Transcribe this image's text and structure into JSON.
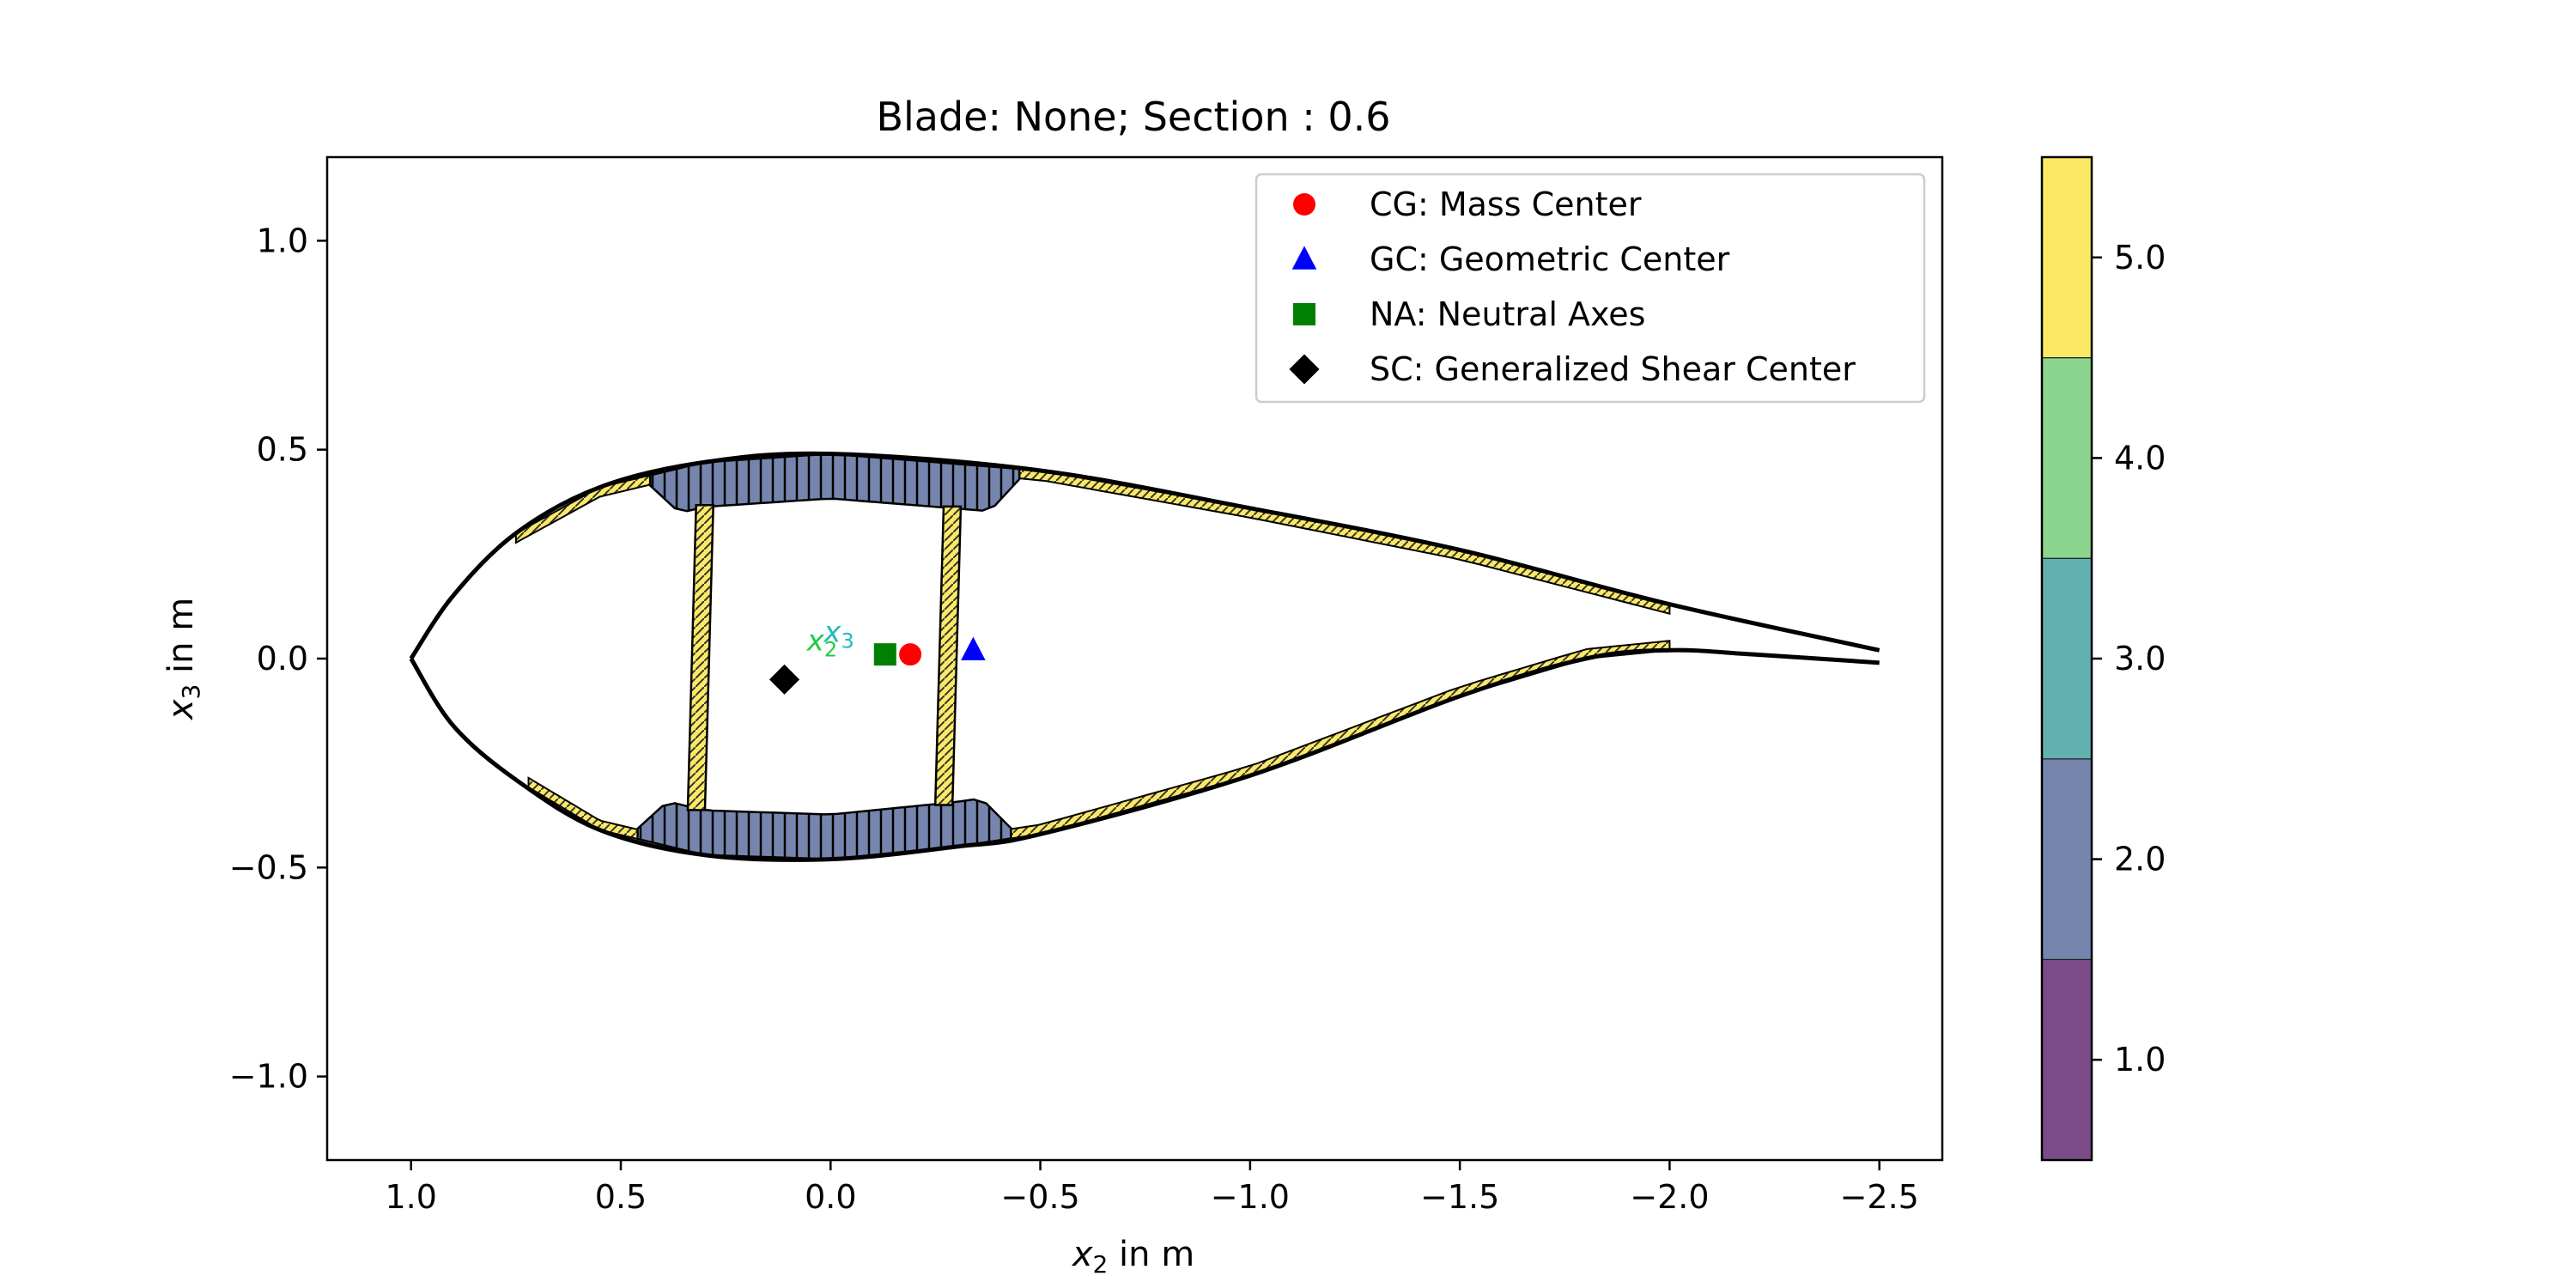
{
  "chart_data": {
    "type": "scatter",
    "title": "Blade: None; Section : 0.6",
    "xlabel_var": "x",
    "xlabel_sub": "2",
    "xlabel_unit": " in m",
    "ylabel_var": "x",
    "ylabel_sub": "3",
    "ylabel_unit": " in m",
    "xlim": [
      1.2,
      -2.65
    ],
    "ylim": [
      -1.2,
      1.2
    ],
    "x_inverted": true,
    "xticks": [
      1.0,
      0.5,
      0.0,
      -0.5,
      -1.0,
      -1.5,
      -2.0,
      -2.5
    ],
    "xtick_labels": [
      "1.0",
      "0.5",
      "0.0",
      "−0.5",
      "−1.0",
      "−1.5",
      "−2.0",
      "−2.5"
    ],
    "yticks": [
      1.0,
      0.5,
      0.0,
      -0.5,
      -1.0
    ],
    "ytick_labels": [
      "1.0",
      "0.5",
      "0.0",
      "−0.5",
      "−1.0"
    ],
    "legend_position": "top-right",
    "series": [
      {
        "name": "CG: Mass Center",
        "marker": "circle",
        "color": "#ff0000",
        "x": -0.19,
        "y": 0.01
      },
      {
        "name": "GC: Geometric Center",
        "marker": "triangle",
        "color": "#0000ff",
        "x": -0.34,
        "y": 0.02
      },
      {
        "name": "NA: Neutral Axes",
        "marker": "square",
        "color": "#008000",
        "x": -0.13,
        "y": 0.01
      },
      {
        "name": "SC: Generalized Shear Center",
        "marker": "diamond",
        "color": "#000000",
        "x": 0.11,
        "y": -0.05
      }
    ],
    "axes_labels": [
      {
        "var": "x",
        "sub": "2",
        "color": "#22cc44",
        "x": 0.02,
        "y": 0.02
      },
      {
        "var": "x",
        "sub": "3",
        "color": "#22bbbb",
        "x": -0.02,
        "y": 0.04
      }
    ],
    "colorbar": {
      "ticks": [
        1.0,
        2.0,
        3.0,
        4.0,
        5.0
      ],
      "tick_labels": [
        "1.0",
        "2.0",
        "3.0",
        "4.0",
        "5.0"
      ],
      "range": [
        0.5,
        5.5
      ],
      "colors": [
        "#7b4b87",
        "#7685ad",
        "#63b0b0",
        "#8cd58f",
        "#fbe965"
      ]
    },
    "airfoil": {
      "outline_top": [
        [
          -2.5,
          0.02
        ],
        [
          -2.0,
          0.13
        ],
        [
          -1.5,
          0.26
        ],
        [
          -1.0,
          0.36
        ],
        [
          -0.5,
          0.45
        ],
        [
          0.0,
          0.49
        ],
        [
          0.3,
          0.47
        ],
        [
          0.55,
          0.41
        ],
        [
          0.75,
          0.3
        ],
        [
          0.9,
          0.15
        ],
        [
          1.0,
          0.0
        ]
      ],
      "outline_bottom": [
        [
          1.0,
          0.0
        ],
        [
          0.9,
          -0.16
        ],
        [
          0.75,
          -0.29
        ],
        [
          0.55,
          -0.41
        ],
        [
          0.3,
          -0.47
        ],
        [
          0.0,
          -0.48
        ],
        [
          -0.3,
          -0.45
        ],
        [
          -0.5,
          -0.42
        ],
        [
          -1.0,
          -0.28
        ],
        [
          -1.5,
          -0.09
        ],
        [
          -1.8,
          0.0
        ],
        [
          -2.0,
          0.02
        ],
        [
          -2.2,
          0.01
        ],
        [
          -2.5,
          -0.01
        ]
      ],
      "spar_caps": [
        {
          "material": 2,
          "x": [
            0.43,
            -0.45
          ],
          "side": "top"
        },
        {
          "material": 2,
          "x": [
            0.46,
            -0.43
          ],
          "side": "bottom"
        }
      ],
      "webs": [
        {
          "material": 5,
          "x_top": 0.3,
          "x_bottom": 0.32
        },
        {
          "material": 5,
          "x_top": -0.29,
          "x_bottom": -0.27
        }
      ],
      "shell_panels": [
        {
          "material": 5,
          "side": "top",
          "x": [
            0.75,
            0.43
          ]
        },
        {
          "material": 5,
          "side": "top",
          "x": [
            -0.45,
            -2.0
          ]
        },
        {
          "material": 5,
          "side": "bottom",
          "x": [
            0.72,
            0.46
          ]
        },
        {
          "material": 5,
          "side": "bottom",
          "x": [
            -0.43,
            -2.0
          ]
        }
      ]
    }
  }
}
